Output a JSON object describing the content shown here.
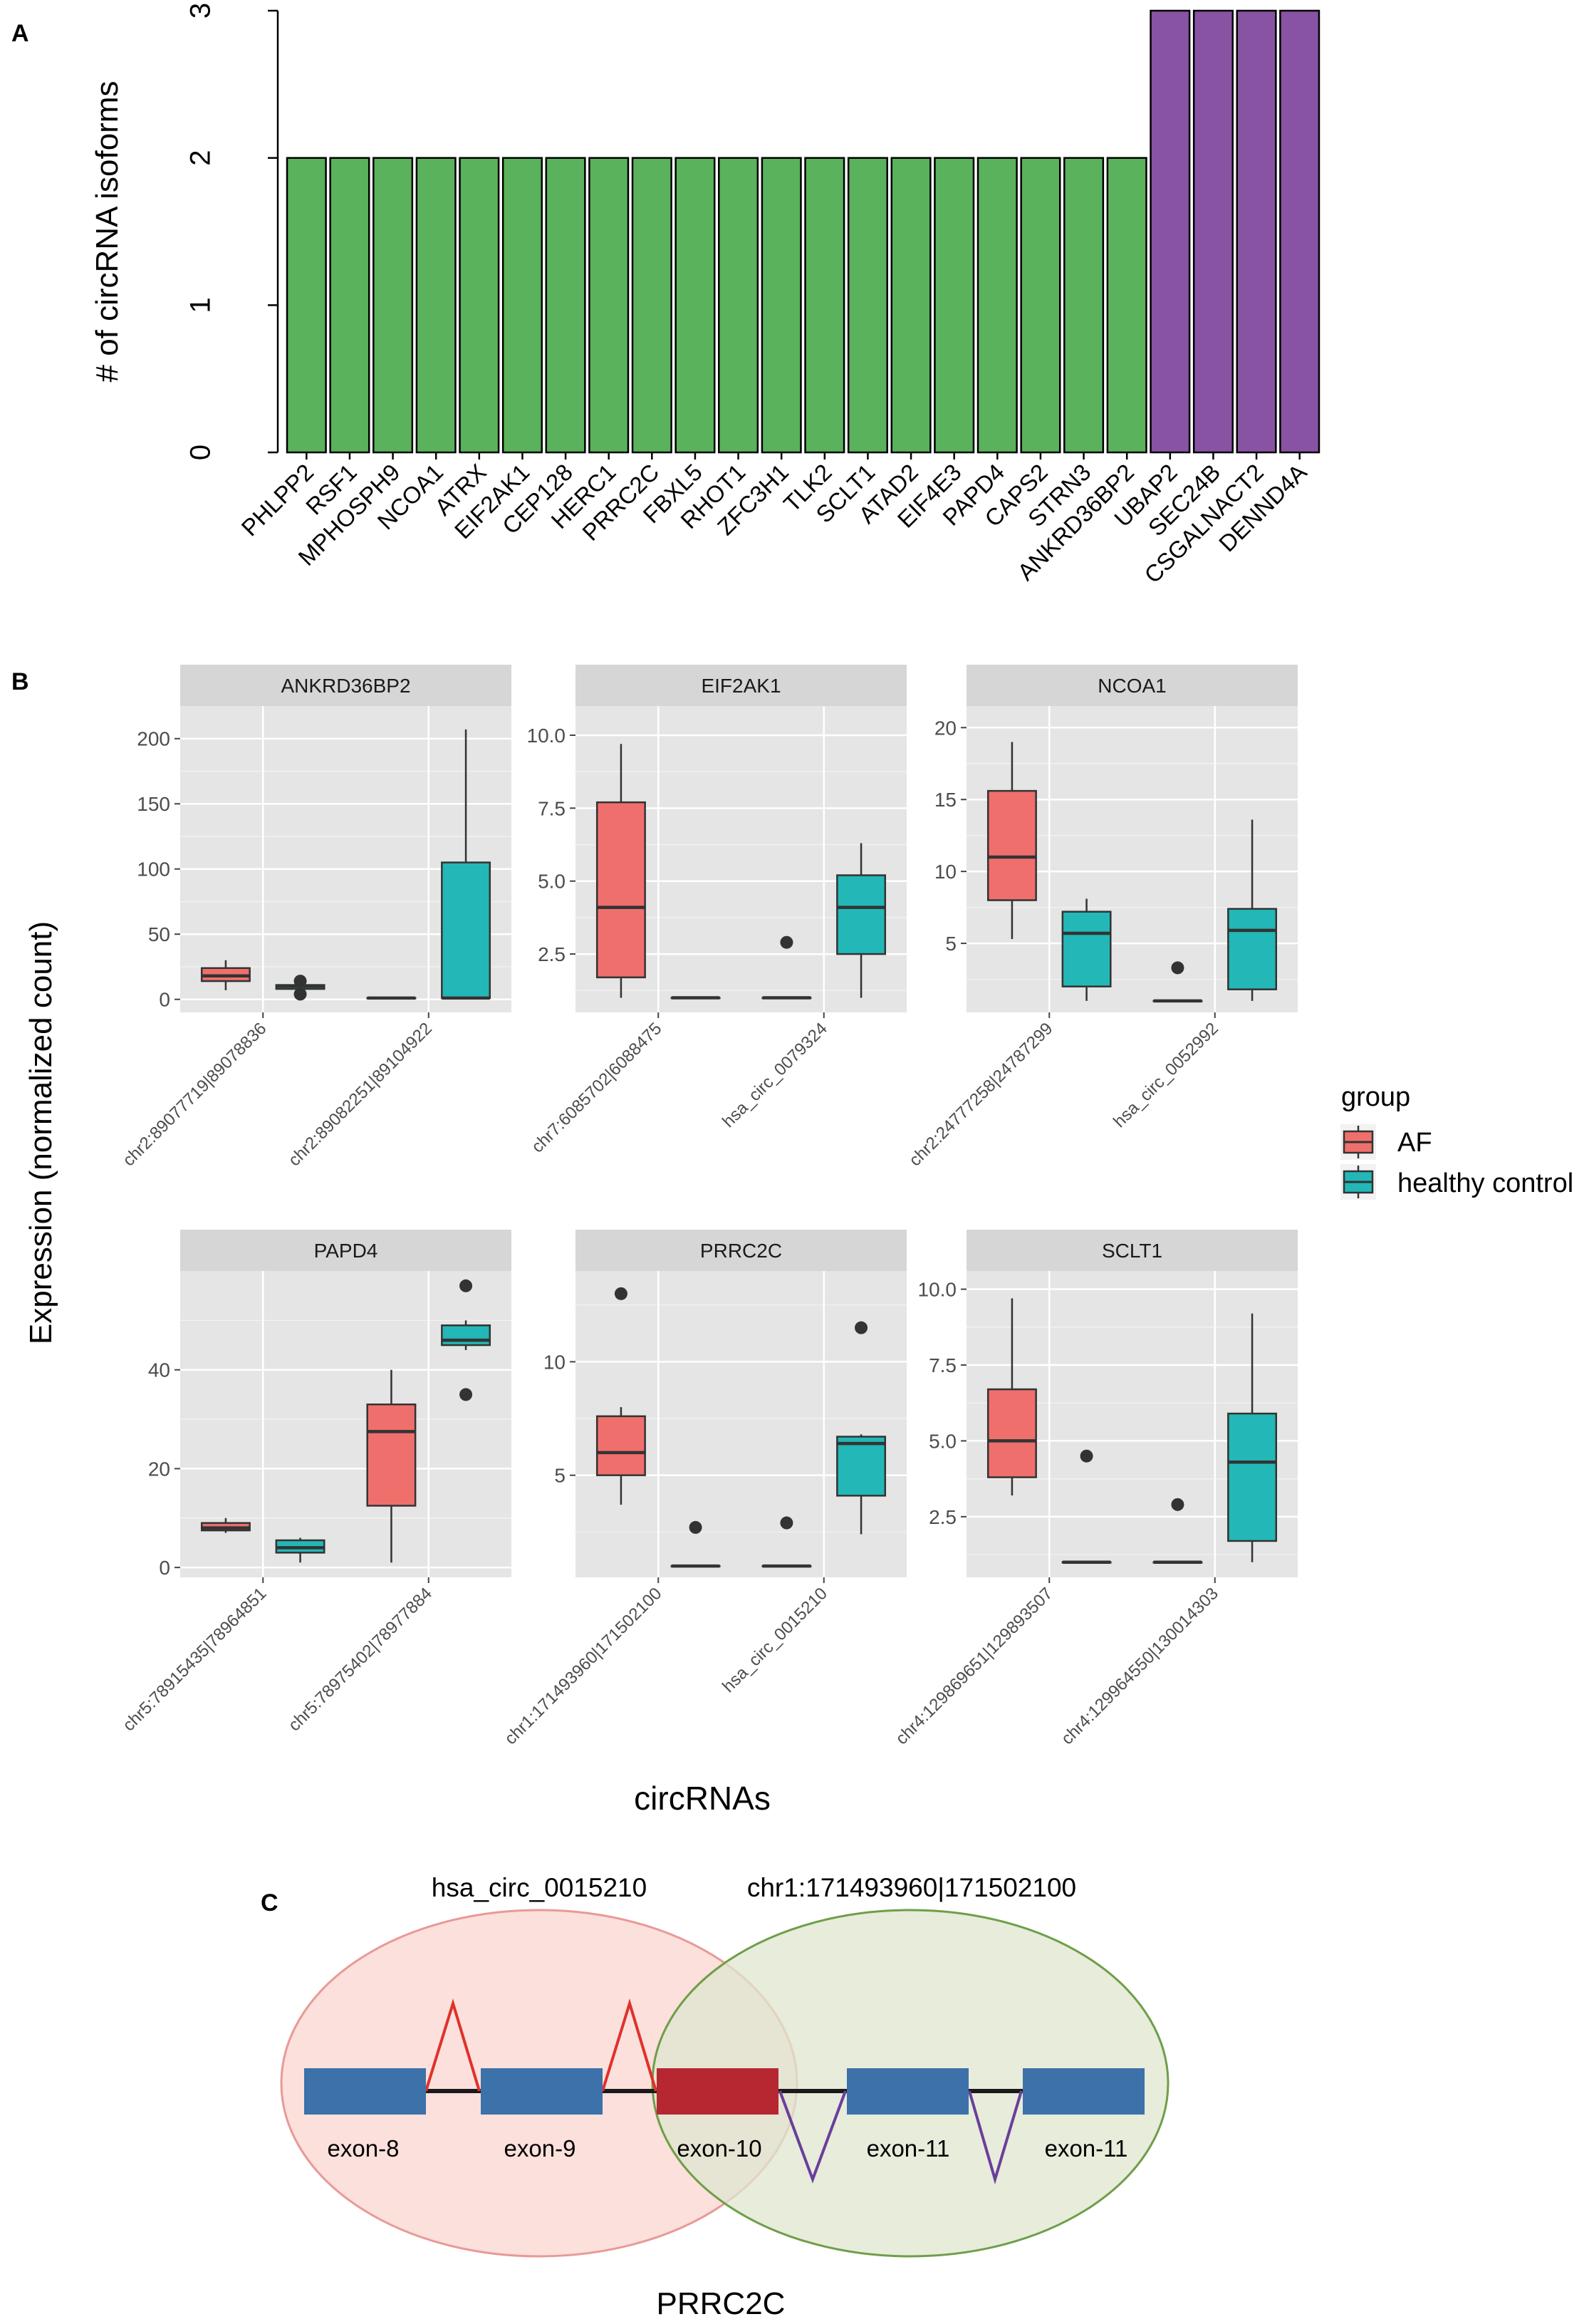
{
  "panel_labels": {
    "a": "A",
    "b": "B",
    "c": "C"
  },
  "colors": {
    "bar_two": "#5ab25c",
    "bar_three": "#8853a2",
    "af": "#ef6f6c",
    "hc": "#23b7b7",
    "panel_bg": "#e5e5e5",
    "strip_bg": "#d6d6d6",
    "exon_blue": "#3d71aa",
    "exon_red": "#b62732",
    "ellipse_red_fill": "#fbe0dc",
    "ellipse_red_stroke": "#e89a96",
    "ellipse_green_fill": "#dfe6cf",
    "ellipse_green_stroke": "#6f9e48",
    "arc_red": "#e0312c",
    "arc_purple": "#6a3f9a"
  },
  "legend": {
    "title": "group",
    "items": [
      {
        "label": "AF",
        "color": "#ef6f6c"
      },
      {
        "label": "healthy control",
        "color": "#23b7b7"
      }
    ]
  },
  "chart_data": [
    {
      "id": "A",
      "type": "bar",
      "ylabel": "# of circRNA isoforms",
      "ylim": [
        0,
        3
      ],
      "yticks": [
        0,
        1,
        2,
        3
      ],
      "categories": [
        "PHLPP2",
        "RSF1",
        "MPHOSPH9",
        "NCOA1",
        "ATRX",
        "EIF2AK1",
        "CEP128",
        "HERC1",
        "PRRC2C",
        "FBXL5",
        "RHOT1",
        "ZFC3H1",
        "TLK2",
        "SCLT1",
        "ATAD2",
        "EIF4E3",
        "PAPD4",
        "CAPS2",
        "STRN3",
        "ANKRD36BP2",
        "UBAP2",
        "SEC24B",
        "CSGALNACT2",
        "DENND4A"
      ],
      "values": [
        2,
        2,
        2,
        2,
        2,
        2,
        2,
        2,
        2,
        2,
        2,
        2,
        2,
        2,
        2,
        2,
        2,
        2,
        2,
        2,
        3,
        3,
        3,
        3
      ]
    },
    {
      "id": "B",
      "type": "boxplot",
      "xlabel": "circRNAs",
      "ylabel": "Expression (normalized count)",
      "facets": [
        {
          "title": "ANKRD36BP2",
          "ylim": [
            -10,
            225
          ],
          "yticks": [
            0,
            50,
            100,
            150,
            200
          ],
          "yticklabels": [
            "0",
            "50",
            "100",
            "150",
            "200"
          ],
          "categories": [
            "chr2:89077719|89078836",
            "chr2:89082251|89104922"
          ],
          "boxes": [
            {
              "cat": 0,
              "group": "AF",
              "min": 7,
              "q1": 14,
              "median": 18,
              "q3": 24,
              "max": 30,
              "outliers": []
            },
            {
              "cat": 0,
              "group": "healthy control",
              "min": 6,
              "q1": 8,
              "median": 10,
              "q3": 11,
              "max": 13,
              "outliers": [
                4,
                14
              ]
            },
            {
              "cat": 1,
              "group": "AF",
              "min": 1,
              "q1": 1,
              "median": 1,
              "q3": 1,
              "max": 1,
              "outliers": []
            },
            {
              "cat": 1,
              "group": "healthy control",
              "min": 1,
              "q1": 1,
              "median": 1,
              "q3": 105,
              "max": 207,
              "outliers": []
            }
          ]
        },
        {
          "title": "EIF2AK1",
          "ylim": [
            0.5,
            11
          ],
          "yticks": [
            2.5,
            5.0,
            7.5,
            10.0
          ],
          "yticklabels": [
            "2.5",
            "5.0",
            "7.5",
            "10.0"
          ],
          "categories": [
            "chr7:6085702|6088475",
            "hsa_circ_0079324"
          ],
          "boxes": [
            {
              "cat": 0,
              "group": "AF",
              "min": 1,
              "q1": 1.7,
              "median": 4.1,
              "q3": 7.7,
              "max": 9.7,
              "outliers": []
            },
            {
              "cat": 0,
              "group": "healthy control",
              "min": 1,
              "q1": 1,
              "median": 1,
              "q3": 1,
              "max": 1,
              "outliers": []
            },
            {
              "cat": 1,
              "group": "AF",
              "min": 1,
              "q1": 1,
              "median": 1,
              "q3": 1,
              "max": 1,
              "outliers": [
                2.9
              ]
            },
            {
              "cat": 1,
              "group": "healthy control",
              "min": 1,
              "q1": 2.5,
              "median": 4.1,
              "q3": 5.2,
              "max": 6.3,
              "outliers": []
            }
          ]
        },
        {
          "title": "NCOA1",
          "ylim": [
            0.2,
            21.5
          ],
          "yticks": [
            5,
            10,
            15,
            20
          ],
          "yticklabels": [
            "5",
            "10",
            "15",
            "20"
          ],
          "categories": [
            "chr2:24777258|24787299",
            "hsa_circ_0052992"
          ],
          "boxes": [
            {
              "cat": 0,
              "group": "AF",
              "min": 5.3,
              "q1": 8,
              "median": 11,
              "q3": 15.6,
              "max": 19,
              "outliers": []
            },
            {
              "cat": 0,
              "group": "healthy control",
              "min": 1,
              "q1": 2,
              "median": 5.7,
              "q3": 7.2,
              "max": 8.1,
              "outliers": []
            },
            {
              "cat": 1,
              "group": "AF",
              "min": 1,
              "q1": 1,
              "median": 1,
              "q3": 1,
              "max": 1,
              "outliers": [
                3.3
              ]
            },
            {
              "cat": 1,
              "group": "healthy control",
              "min": 1,
              "q1": 1.8,
              "median": 5.9,
              "q3": 7.4,
              "max": 13.6,
              "outliers": []
            }
          ]
        },
        {
          "title": "PAPD4",
          "ylim": [
            -2,
            60
          ],
          "yticks": [
            0,
            20,
            40
          ],
          "yticklabels": [
            "0",
            "20",
            "40"
          ],
          "categories": [
            "chr5:78915435|78964851",
            "chr5:78975402|78977884"
          ],
          "boxes": [
            {
              "cat": 0,
              "group": "AF",
              "min": 7,
              "q1": 7.5,
              "median": 8,
              "q3": 9,
              "max": 10,
              "outliers": []
            },
            {
              "cat": 0,
              "group": "healthy control",
              "min": 1,
              "q1": 3,
              "median": 4,
              "q3": 5.5,
              "max": 6,
              "outliers": []
            },
            {
              "cat": 1,
              "group": "AF",
              "min": 1,
              "q1": 12.5,
              "median": 27.5,
              "q3": 33,
              "max": 40,
              "outliers": []
            },
            {
              "cat": 1,
              "group": "healthy control",
              "min": 44,
              "q1": 45,
              "median": 46,
              "q3": 49,
              "max": 50,
              "outliers": [
                35,
                57
              ]
            }
          ]
        },
        {
          "title": "PRRC2C",
          "ylim": [
            0.5,
            14
          ],
          "yticks": [
            5,
            10
          ],
          "yticklabels": [
            "5",
            "10"
          ],
          "categories": [
            "chr1:171493960|171502100",
            "hsa_circ_0015210"
          ],
          "boxes": [
            {
              "cat": 0,
              "group": "AF",
              "min": 3.7,
              "q1": 5,
              "median": 6,
              "q3": 7.6,
              "max": 8,
              "outliers": [
                13
              ]
            },
            {
              "cat": 0,
              "group": "healthy control",
              "min": 1,
              "q1": 1,
              "median": 1,
              "q3": 1,
              "max": 1,
              "outliers": [
                2.7
              ]
            },
            {
              "cat": 1,
              "group": "AF",
              "min": 1,
              "q1": 1,
              "median": 1,
              "q3": 1,
              "max": 1,
              "outliers": [
                2.9
              ]
            },
            {
              "cat": 1,
              "group": "healthy control",
              "min": 2.4,
              "q1": 4.1,
              "median": 6.4,
              "q3": 6.7,
              "max": 6.8,
              "outliers": [
                11.5
              ]
            }
          ]
        },
        {
          "title": "SCLT1",
          "ylim": [
            0.5,
            10.6
          ],
          "yticks": [
            2.5,
            5.0,
            7.5,
            10.0
          ],
          "yticklabels": [
            "2.5",
            "5.0",
            "7.5",
            "10.0"
          ],
          "categories": [
            "chr4:129869651|129893507",
            "chr4:129964550|130014303"
          ],
          "boxes": [
            {
              "cat": 0,
              "group": "AF",
              "min": 3.2,
              "q1": 3.8,
              "median": 5.0,
              "q3": 6.7,
              "max": 9.7,
              "outliers": []
            },
            {
              "cat": 0,
              "group": "healthy control",
              "min": 1,
              "q1": 1,
              "median": 1,
              "q3": 1,
              "max": 1,
              "outliers": [
                4.5
              ]
            },
            {
              "cat": 1,
              "group": "AF",
              "min": 1,
              "q1": 1,
              "median": 1,
              "q3": 1,
              "max": 1,
              "outliers": [
                2.9
              ]
            },
            {
              "cat": 1,
              "group": "healthy control",
              "min": 1,
              "q1": 1.7,
              "median": 4.3,
              "q3": 5.9,
              "max": 9.2,
              "outliers": []
            }
          ]
        }
      ]
    }
  ],
  "diagram": {
    "left_label": "hsa_circ_0015210",
    "right_label": "chr1:171493960|171502100",
    "gene": "PRRC2C",
    "exons": [
      {
        "label": "exon-8",
        "highlight": false
      },
      {
        "label": "exon-9",
        "highlight": false
      },
      {
        "label": "exon-10",
        "highlight": true
      },
      {
        "label": "exon-11",
        "highlight": false
      },
      {
        "label": "exon-11",
        "highlight": false
      }
    ]
  }
}
